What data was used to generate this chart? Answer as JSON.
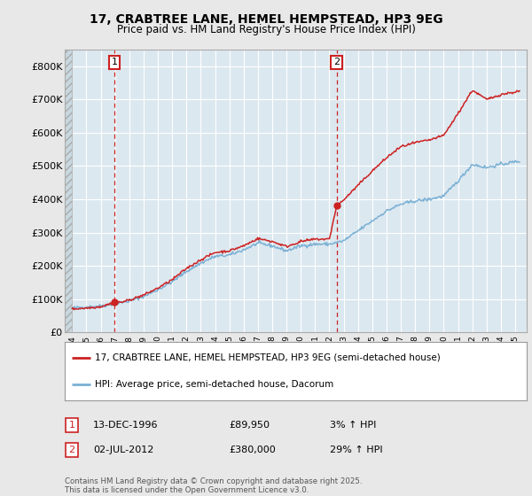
{
  "title": "17, CRABTREE LANE, HEMEL HEMPSTEAD, HP3 9EG",
  "subtitle": "Price paid vs. HM Land Registry's House Price Index (HPI)",
  "background_color": "#e8e8e8",
  "plot_bg_color": "#dce8f0",
  "grid_color": "#ffffff",
  "sale1_date": 1996.958,
  "sale1_price": 89950,
  "sale2_date": 2012.5,
  "sale2_price": 380000,
  "sale1_vline": 1996.958,
  "sale2_vline": 2012.5,
  "red_color": "#cc2222",
  "blue_color": "#7ab0d4",
  "legend_line1": "17, CRABTREE LANE, HEMEL HEMPSTEAD, HP3 9EG (semi-detached house)",
  "legend_line2": "HPI: Average price, semi-detached house, Dacorum",
  "annotation1_date": "13-DEC-1996",
  "annotation1_price": "£89,950",
  "annotation1_hpi": "3% ↑ HPI",
  "annotation2_date": "02-JUL-2012",
  "annotation2_price": "£380,000",
  "annotation2_hpi": "29% ↑ HPI",
  "footer": "Contains HM Land Registry data © Crown copyright and database right 2025.\nThis data is licensed under the Open Government Licence v3.0.",
  "xmin": 1993.5,
  "xmax": 2025.8,
  "ymin": 0,
  "ymax": 850000,
  "yticks": [
    0,
    100000,
    200000,
    300000,
    400000,
    500000,
    600000,
    700000,
    800000
  ],
  "ytick_labels": [
    "£0",
    "£100K",
    "£200K",
    "£300K",
    "£400K",
    "£500K",
    "£600K",
    "£700K",
    "£800K"
  ]
}
